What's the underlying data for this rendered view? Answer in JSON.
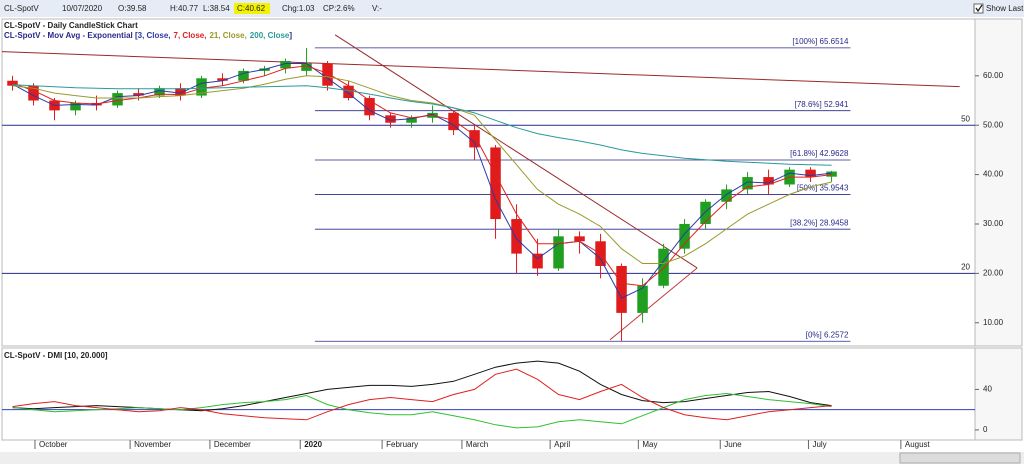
{
  "toolbar": {
    "symbol": "CL-SpotV",
    "date": "10/07/2020",
    "open": "O:39.58",
    "high": "H:40.77",
    "low": "L:38.54",
    "close": "C:40.62",
    "change": "Chg:1.03",
    "change_pct": "CP:2.6%",
    "volume": "V:-",
    "show_last": "Show Last"
  },
  "chart_data": [
    {
      "type": "candlestick",
      "title": "CL-SpotV - Daily CandleStick Chart",
      "subtitle_prefix": "CL-SpotV - Mov Avg - Exponential [",
      "subtitle_suffix": "]",
      "categories": [
        null,
        null,
        null,
        null,
        null,
        null,
        null,
        null,
        null,
        null,
        null,
        null,
        null,
        null,
        null,
        null,
        null,
        null,
        null,
        null,
        null,
        null,
        null,
        null,
        null,
        null,
        null,
        null,
        null,
        null,
        null,
        null,
        null,
        null,
        null,
        null,
        null,
        null,
        null,
        null
      ],
      "open": [
        59,
        58,
        55,
        53,
        54.5,
        54,
        56.5,
        56,
        57.5,
        56,
        59.5,
        59,
        61,
        61.5,
        61,
        62.5,
        58,
        55.5,
        52,
        50.5,
        51.5,
        52.5,
        49,
        45.5,
        31,
        24,
        21,
        27.5,
        26.5,
        21.5,
        12,
        17.5,
        25,
        30,
        34.5,
        37,
        39.5,
        38,
        41,
        39.58
      ],
      "high": [
        60,
        58.5,
        55.5,
        55,
        56,
        57,
        57.5,
        58,
        58.5,
        60,
        60.5,
        61.5,
        62,
        63.5,
        65.65,
        63,
        59,
        56,
        52.5,
        52,
        54,
        53,
        50,
        46,
        34,
        27,
        29,
        28.5,
        28,
        22,
        19,
        26,
        31,
        35,
        38,
        40.5,
        41,
        41.5,
        41.5,
        40.77
      ],
      "low": [
        57,
        54,
        51,
        52,
        53,
        53.5,
        55,
        55.5,
        55,
        55.5,
        58,
        58.5,
        60,
        60.5,
        60,
        57,
        55,
        51,
        49.5,
        49.5,
        50.5,
        48,
        43,
        27,
        20,
        19.5,
        20.5,
        24,
        19,
        6.26,
        10,
        17,
        24,
        29,
        33,
        36,
        36,
        37.5,
        38.5,
        38.54
      ],
      "close": [
        58,
        55,
        53,
        54.5,
        54,
        56.5,
        56,
        57.5,
        56,
        59.5,
        59,
        61,
        61.5,
        63,
        62.5,
        58,
        55.5,
        52,
        50.5,
        51.5,
        52.5,
        49,
        45.5,
        31,
        24,
        21,
        27.5,
        26.5,
        21.5,
        12,
        17.5,
        25,
        30,
        34.5,
        37,
        39.5,
        38,
        41,
        39.5,
        40.62
      ],
      "up_color": "#1f9e1f",
      "down_color": "#e01b1b",
      "moving_averages": [
        {
          "name": "3, Close,",
          "color": "#2a3aa8",
          "values": [
            58.3,
            56,
            54,
            54.2,
            54.1,
            55.8,
            56,
            57,
            56.5,
            58.5,
            59,
            60.5,
            61.3,
            62.5,
            62.5,
            59.5,
            56.5,
            53,
            51,
            51.3,
            52.2,
            50,
            46.5,
            35,
            27,
            23,
            26,
            26.5,
            23,
            15,
            17,
            22.5,
            28,
            32.5,
            36,
            38.5,
            38.3,
            40.3,
            39.8,
            40.3
          ]
        },
        {
          "name": "7, Close,",
          "color": "#e02020",
          "values": [
            58.5,
            57,
            55,
            54.5,
            54.3,
            55,
            55.5,
            56.3,
            56.2,
            57.5,
            58,
            59,
            60,
            61.5,
            62,
            60.5,
            58,
            55,
            52.5,
            51.5,
            52,
            51,
            48,
            40,
            32,
            26,
            26,
            26.5,
            24,
            18,
            17.5,
            21,
            26,
            30.5,
            34.5,
            37.5,
            38,
            39.5,
            39.5,
            40
          ]
        },
        {
          "name": "21, Close,",
          "color": "#9a9a2a",
          "values": [
            58,
            57.5,
            56.5,
            56,
            55.5,
            55.5,
            55.5,
            55.8,
            56,
            56.5,
            57,
            57.5,
            58.3,
            59.3,
            60,
            59.8,
            59,
            57.5,
            56,
            55,
            54.5,
            53.5,
            52,
            47,
            42,
            37,
            34,
            32,
            29.5,
            25,
            22,
            22,
            23.5,
            26,
            29,
            32,
            34,
            36,
            37.5,
            38.5
          ]
        },
        {
          "name": "200, Close",
          "color": "#2a9a9a",
          "values": [
            58.2,
            58,
            57.8,
            57.6,
            57.5,
            57.4,
            57.4,
            57.4,
            57.4,
            57.5,
            57.6,
            57.7,
            57.8,
            57.9,
            58,
            57.6,
            57,
            56.3,
            55.5,
            54.8,
            54.3,
            53.5,
            52.5,
            51,
            49.5,
            48.3,
            47.5,
            46.8,
            46,
            45,
            44.3,
            43.8,
            43.3,
            43,
            42.7,
            42.5,
            42.3,
            42.1,
            42,
            41.9
          ]
        }
      ],
      "fib_color": "#2a2a8a",
      "fib_range": [
        14.9,
        40.4
      ],
      "fib_levels": [
        {
          "value": 65.6514,
          "label": "[100%] 65.6514"
        },
        {
          "value": 52.941,
          "label": "[78.6%] 52.941"
        },
        {
          "value": 42.9628,
          "label": "[61.8%] 42.9628"
        },
        {
          "value": 35.9543,
          "label": "[50%] 35.9543"
        },
        {
          "value": 28.9458,
          "label": "[38.2%] 28.9458"
        },
        {
          "value": 6.2572,
          "label": "[0%] 6.2572"
        }
      ],
      "hlines": [
        50,
        20
      ],
      "hline_color": "#2a2a8a",
      "trend_lines": [
        {
          "color": "#9a2a2a",
          "points": [
            [
              0,
              64.9
            ],
            [
              45.6,
              57.8
            ]
          ]
        },
        {
          "color": "#9a2a2a",
          "points": [
            [
              15.86,
              68.3
            ],
            [
              33.1,
              21.1
            ]
          ]
        },
        {
          "color": "#c04040",
          "points": [
            [
              28.95,
              6.55
            ],
            [
              33.1,
              21.1
            ]
          ]
        }
      ],
      "xlim": [
        0,
        46.33
      ],
      "ylim": [
        5.5,
        71.3
      ],
      "yticks": [
        {
          "value": 10,
          "label": "10.00"
        },
        {
          "value": 20,
          "label": "20.00"
        },
        {
          "value": 30,
          "label": "30.00"
        },
        {
          "value": 40,
          "label": "40.00"
        },
        {
          "value": 50,
          "label": "50.00"
        },
        {
          "value": 60,
          "label": "60.00"
        }
      ]
    },
    {
      "type": "line",
      "title": "CL-SpotV - DMI [10, 20.000]",
      "series": [
        {
          "color": "#111111",
          "values": [
            22,
            21,
            22,
            23,
            24,
            23,
            22,
            21,
            20,
            19,
            21,
            24,
            28,
            32,
            36,
            40,
            42,
            44,
            44,
            43,
            45,
            48,
            55,
            62,
            66,
            68,
            66,
            58,
            45,
            35,
            29,
            27,
            28,
            31,
            34,
            37,
            38,
            33,
            27,
            24
          ]
        },
        {
          "color": "#30c030",
          "values": [
            22,
            20,
            18,
            19,
            20,
            21,
            22,
            21,
            20,
            22,
            25,
            27,
            28,
            30,
            34,
            25,
            20,
            17,
            15,
            15,
            18,
            14,
            10,
            5,
            2,
            3,
            8,
            10,
            8,
            6,
            14,
            22,
            30,
            34,
            36,
            33,
            30,
            28,
            26,
            23
          ]
        },
        {
          "color": "#e02020",
          "values": [
            23,
            26,
            28,
            24,
            22,
            20,
            18,
            19,
            22,
            20,
            16,
            14,
            12,
            11,
            10,
            18,
            25,
            30,
            32,
            30,
            28,
            35,
            40,
            55,
            60,
            50,
            35,
            30,
            38,
            45,
            32,
            22,
            15,
            12,
            10,
            14,
            18,
            20,
            22,
            24
          ]
        }
      ],
      "hline": 20,
      "hline_color": "#3040c0",
      "xlim": [
        0,
        46.33
      ],
      "ylim": [
        -10,
        79
      ],
      "yticks": [
        0,
        40
      ],
      "xticks": [
        {
          "value": 1.57,
          "label": "October"
        },
        {
          "value": 6.1,
          "label": "November"
        },
        {
          "value": 9.9,
          "label": "December"
        },
        {
          "value": 14.2,
          "label": "2020"
        },
        {
          "value": 18.1,
          "label": "February"
        },
        {
          "value": 21.9,
          "label": "March"
        },
        {
          "value": 26.1,
          "label": "April"
        },
        {
          "value": 30.3,
          "label": "May"
        },
        {
          "value": 34.2,
          "label": "June"
        },
        {
          "value": 38.4,
          "label": "July"
        },
        {
          "value": 42.8,
          "label": "August"
        }
      ]
    }
  ]
}
